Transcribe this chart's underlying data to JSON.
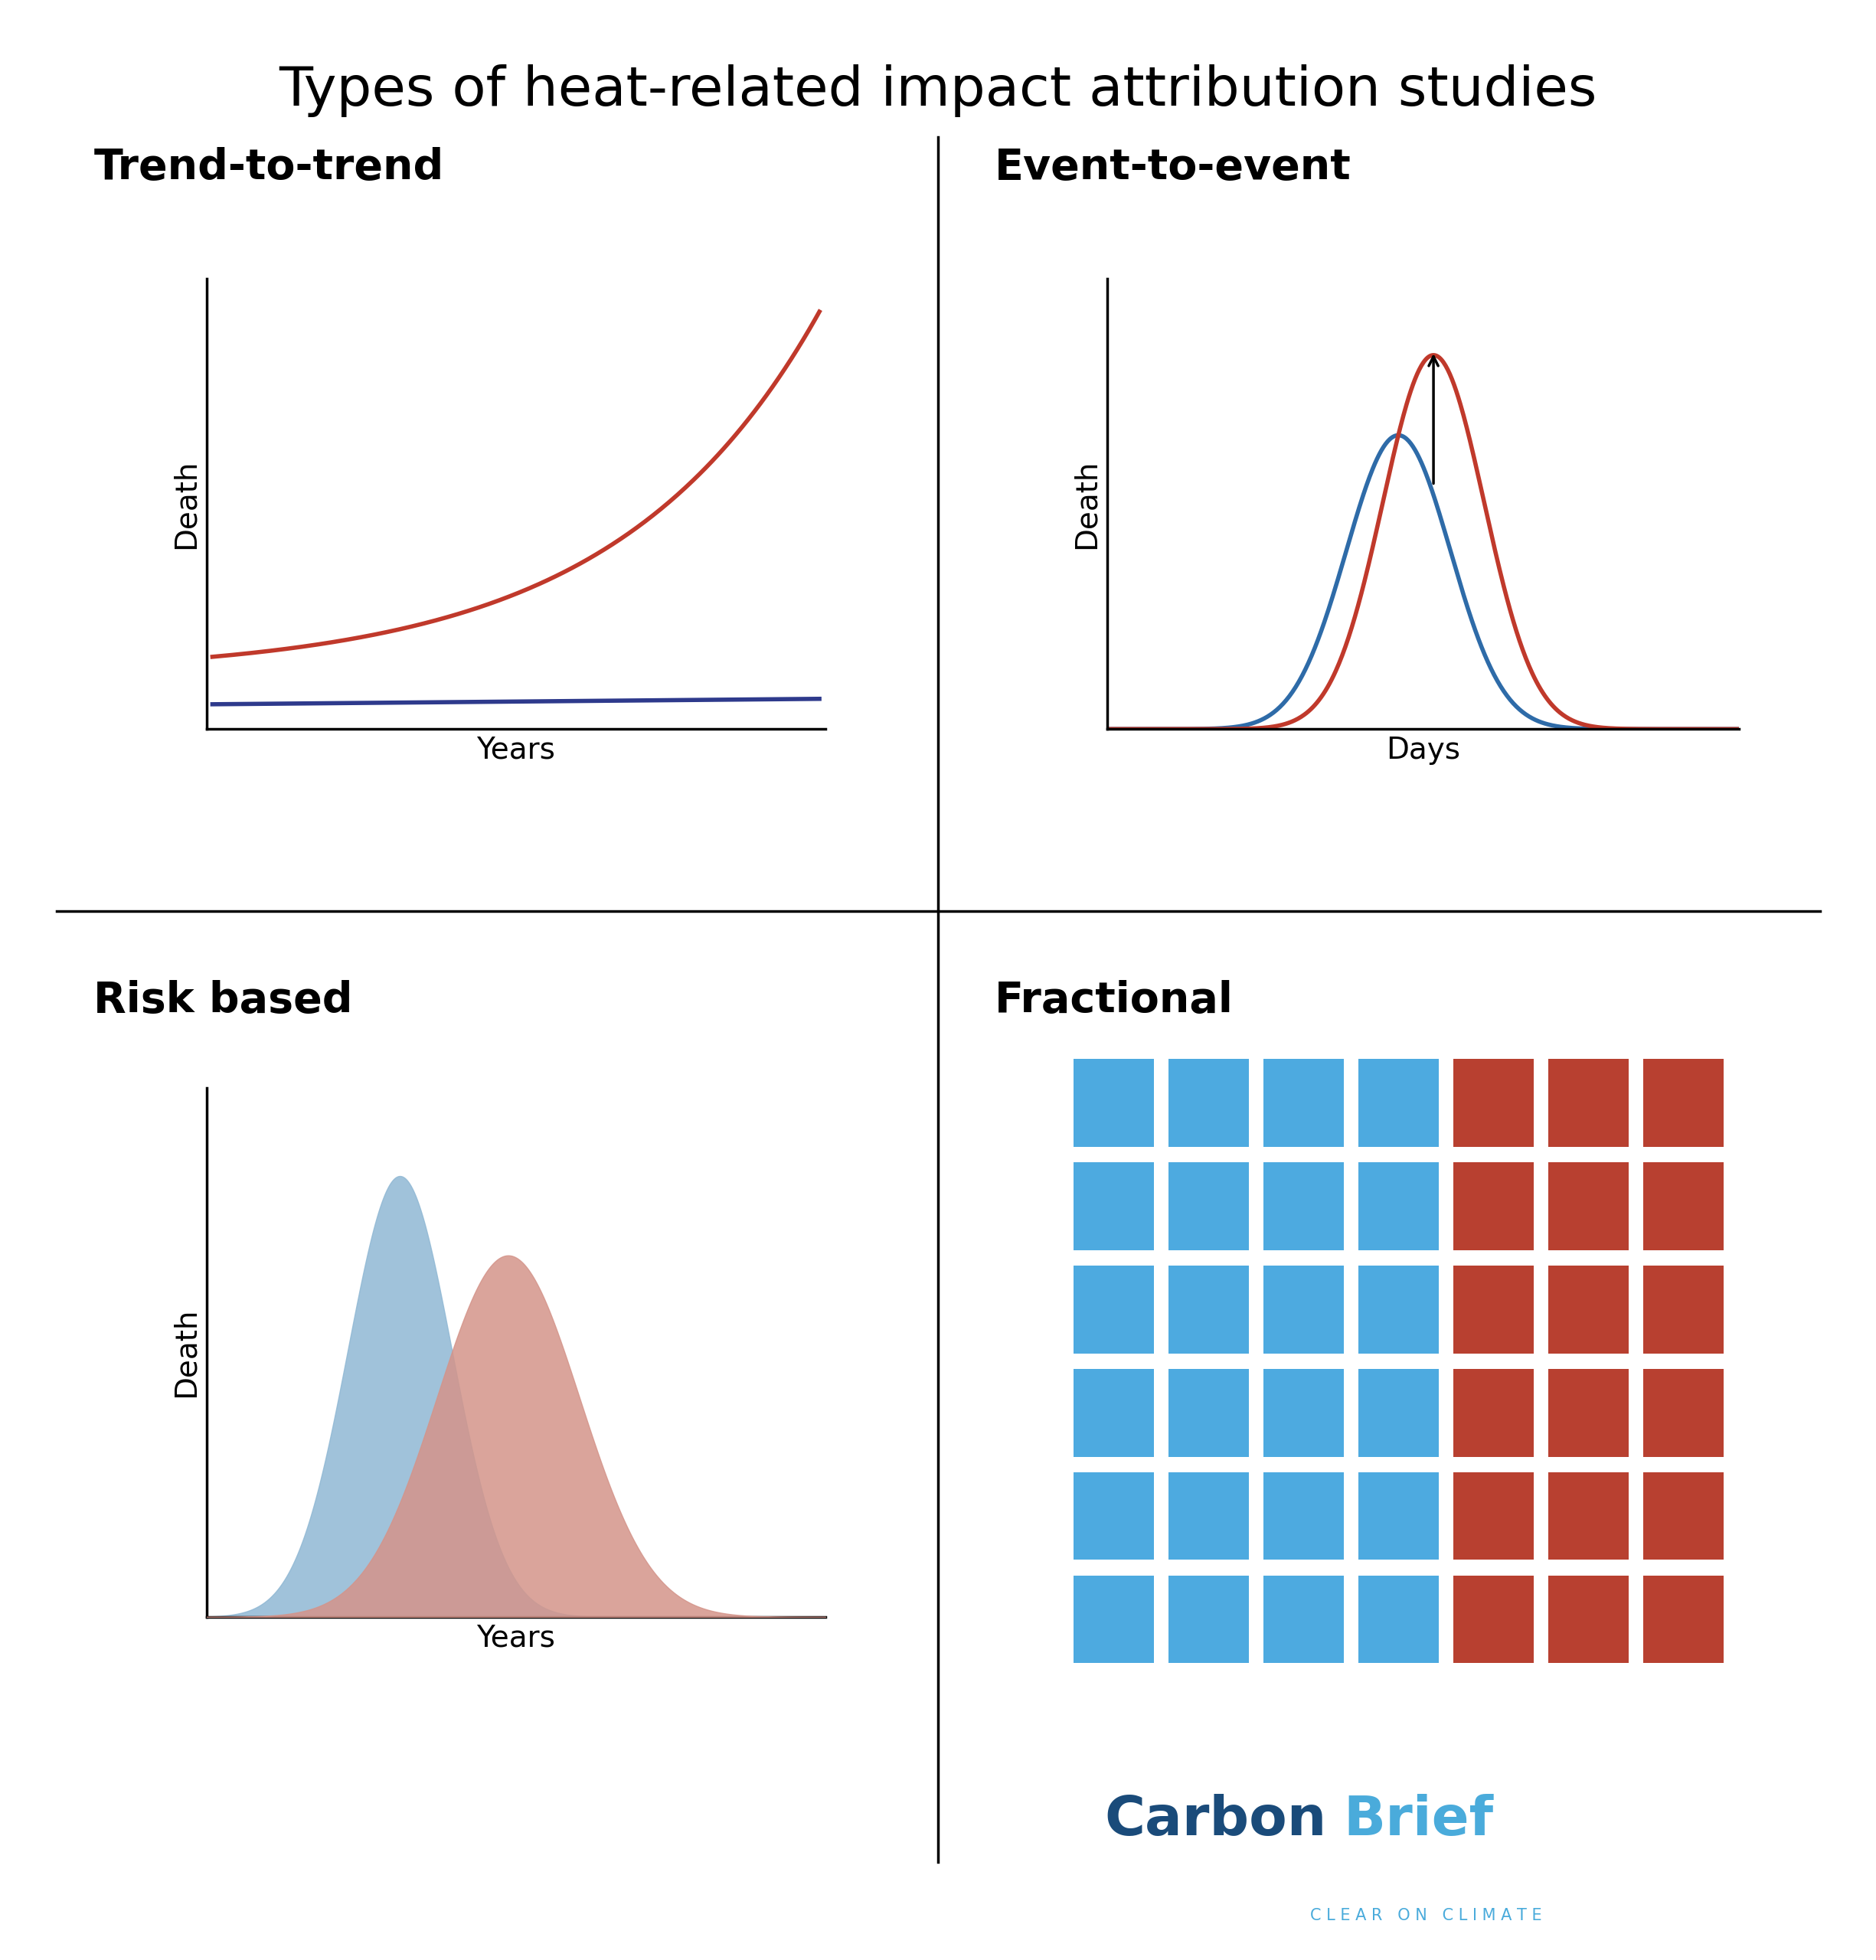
{
  "title": "Types of heat-related impact attribution studies",
  "title_fontsize": 52,
  "panel_titles": [
    "Trend-to-trend",
    "Event-to-event",
    "Risk based",
    "Fractional"
  ],
  "panel_title_fontsize": 40,
  "red_color": "#C0392B",
  "blue_line_color": "#2E3A8C",
  "blue_line_event": "#2E6BA8",
  "red_fill": "#D4948A",
  "blue_fill": "#90B8D4",
  "fractional_blue": "#4DAAE0",
  "fractional_red": "#B84030",
  "grid_rows": 6,
  "grid_cols": 7,
  "grid_blue_cols": 4,
  "xlabel_trend": "Years",
  "xlabel_event": "Days",
  "xlabel_risk": "Years",
  "ylabel_death": "Death",
  "carbonbrief_dark": "#1A4B7A",
  "carbonbrief_light": "#4AABDB",
  "shadow_color": "#BBBBBB"
}
